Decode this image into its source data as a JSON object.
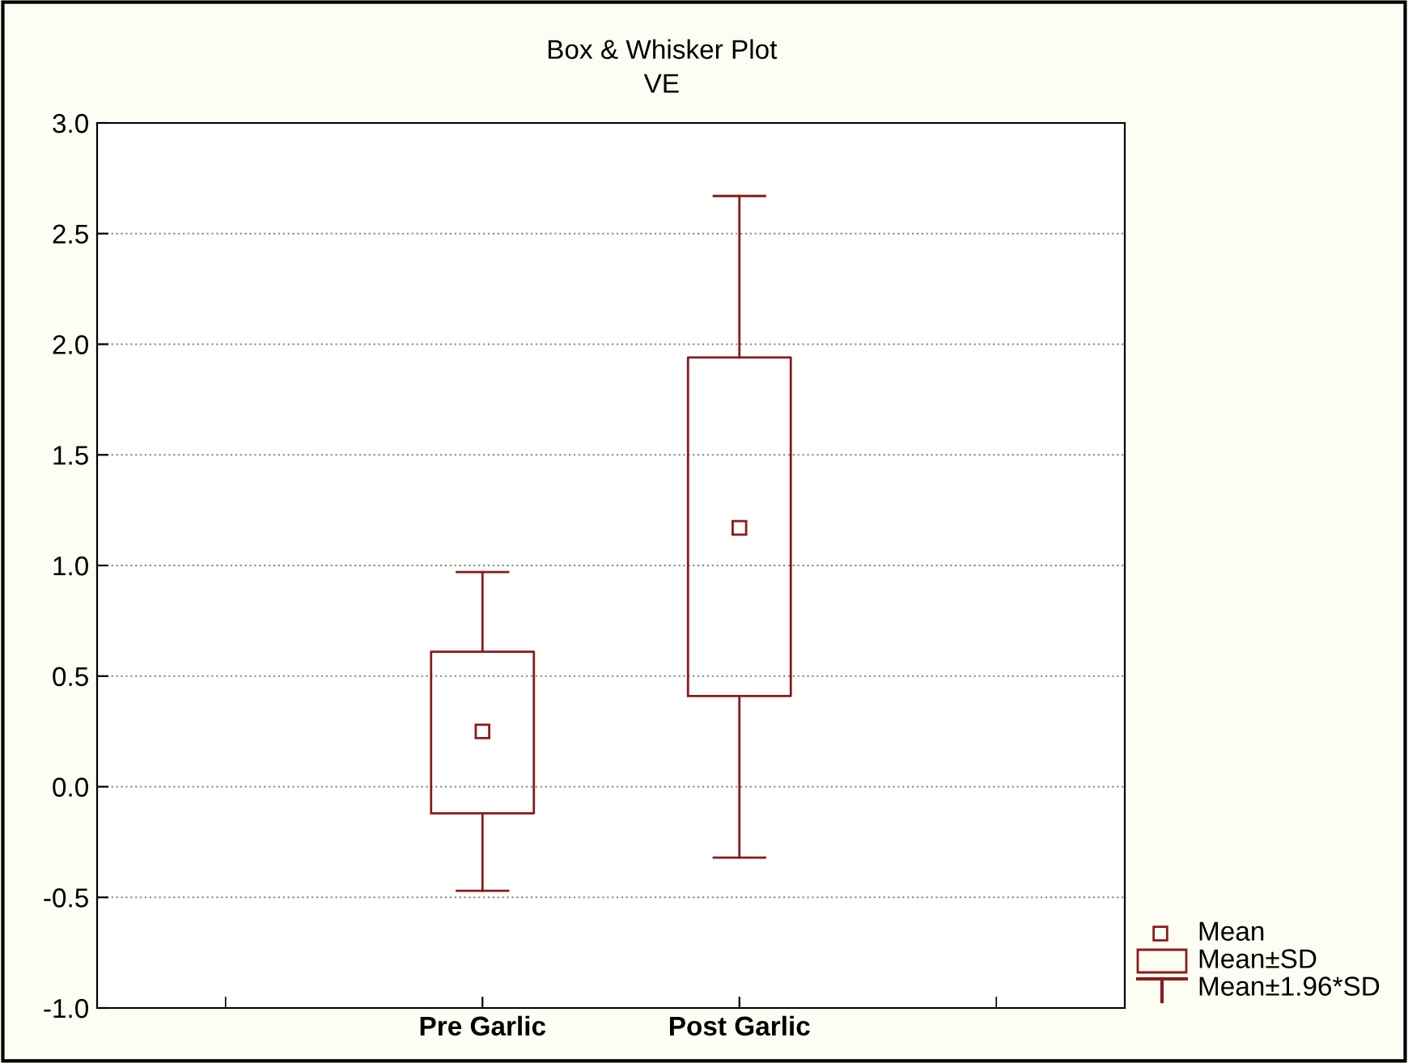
{
  "chart_data": {
    "type": "box",
    "title": "Box & Whisker Plot",
    "subtitle": "VE",
    "categories": [
      "Pre Garlic",
      "Post Garlic"
    ],
    "boxes": [
      {
        "low": -0.47,
        "q1": -0.12,
        "median": 0.25,
        "q3": 0.61,
        "high": 0.97
      },
      {
        "low": -0.32,
        "q1": 0.41,
        "median": 1.17,
        "q3": 1.94,
        "high": 2.67
      }
    ],
    "color": "#8b1a1a",
    "ylim": [
      -1.0,
      3.0
    ],
    "yticks": [
      {
        "value": -1.0,
        "label": "-1.0"
      },
      {
        "value": -0.5,
        "label": "-0.5"
      },
      {
        "value": 0.0,
        "label": "0.0"
      },
      {
        "value": 0.5,
        "label": "0.5"
      },
      {
        "value": 1.0,
        "label": "1.0"
      },
      {
        "value": 1.5,
        "label": "1.5"
      },
      {
        "value": 2.0,
        "label": "2.0"
      },
      {
        "value": 2.5,
        "label": "2.5"
      },
      {
        "value": 3.0,
        "label": "3.0"
      }
    ],
    "grid": "y",
    "marker": "square",
    "annotations": [
      "Mean",
      "Mean±SD",
      "Mean±1.96*SD"
    ]
  }
}
